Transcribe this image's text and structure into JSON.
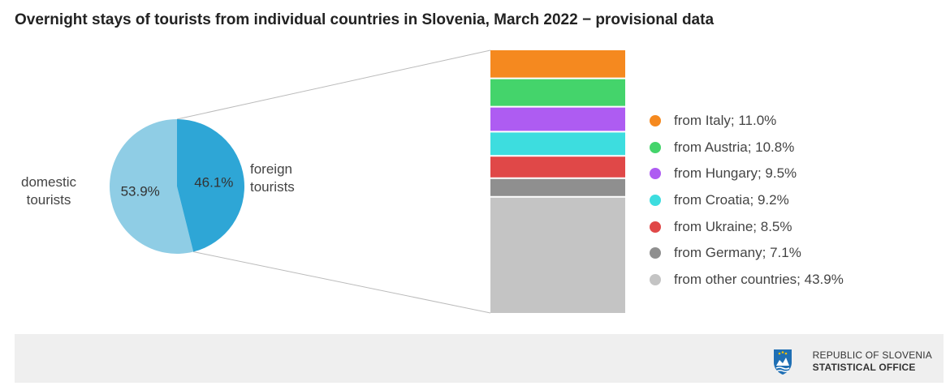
{
  "chart_data": {
    "type": "pie",
    "title": "Overnight stays of tourists from individual countries in Slovenia, March 2022 − provisional data",
    "pie": {
      "slices": [
        {
          "label": "domestic tourists",
          "label_lines": [
            "domestic",
            "tourists"
          ],
          "value": 53.9,
          "value_label": "53.9%",
          "color": "#8fcde5"
        },
        {
          "label": "foreign tourists",
          "label_lines": [
            "foreign",
            "tourists"
          ],
          "value": 46.1,
          "value_label": "46.1%",
          "color": "#2ea6d6"
        }
      ]
    },
    "breakdown": {
      "type": "stacked_bar",
      "of": "foreign tourists",
      "segments": [
        {
          "label": "from Italy; 11.0%",
          "value": 11.0,
          "color": "#f5891f"
        },
        {
          "label": "from Austria; 10.8%",
          "value": 10.8,
          "color": "#44d46b"
        },
        {
          "label": "from Hungary; 9.5%",
          "value": 9.5,
          "color": "#ae5cf2"
        },
        {
          "label": "from Croatia; 9.2%",
          "value": 9.2,
          "color": "#3ddddf"
        },
        {
          "label": "from Ukraine; 8.5%",
          "value": 8.5,
          "color": "#e04848"
        },
        {
          "label": "from Germany; 7.1%",
          "value": 7.1,
          "color": "#8f8f8f"
        },
        {
          "label": "from other countries; 43.9%",
          "value": 43.9,
          "color": "#c4c4c4"
        }
      ]
    },
    "legend_position": "right"
  },
  "footer": {
    "org_line1": "REPUBLIC OF SLOVENIA",
    "org_line2": "STATISTICAL OFFICE",
    "logo_icon": "coat-of-arms-icon"
  }
}
